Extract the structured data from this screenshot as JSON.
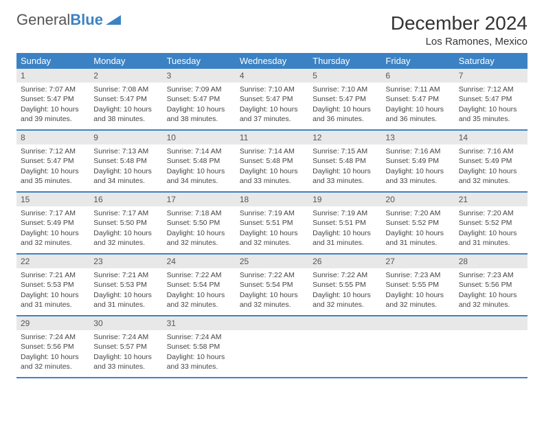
{
  "brand": {
    "word1": "General",
    "word2": "Blue"
  },
  "title": "December 2024",
  "location": "Los Ramones, Mexico",
  "colors": {
    "header_bg": "#3b82c4",
    "header_text": "#ffffff",
    "daynum_bg": "#e8e8e8",
    "text": "#444444",
    "rule": "#3b82c4"
  },
  "weekdays": [
    "Sunday",
    "Monday",
    "Tuesday",
    "Wednesday",
    "Thursday",
    "Friday",
    "Saturday"
  ],
  "days": [
    {
      "n": "1",
      "sr": "7:07 AM",
      "ss": "5:47 PM",
      "dl": "10 hours and 39 minutes."
    },
    {
      "n": "2",
      "sr": "7:08 AM",
      "ss": "5:47 PM",
      "dl": "10 hours and 38 minutes."
    },
    {
      "n": "3",
      "sr": "7:09 AM",
      "ss": "5:47 PM",
      "dl": "10 hours and 38 minutes."
    },
    {
      "n": "4",
      "sr": "7:10 AM",
      "ss": "5:47 PM",
      "dl": "10 hours and 37 minutes."
    },
    {
      "n": "5",
      "sr": "7:10 AM",
      "ss": "5:47 PM",
      "dl": "10 hours and 36 minutes."
    },
    {
      "n": "6",
      "sr": "7:11 AM",
      "ss": "5:47 PM",
      "dl": "10 hours and 36 minutes."
    },
    {
      "n": "7",
      "sr": "7:12 AM",
      "ss": "5:47 PM",
      "dl": "10 hours and 35 minutes."
    },
    {
      "n": "8",
      "sr": "7:12 AM",
      "ss": "5:47 PM",
      "dl": "10 hours and 35 minutes."
    },
    {
      "n": "9",
      "sr": "7:13 AM",
      "ss": "5:48 PM",
      "dl": "10 hours and 34 minutes."
    },
    {
      "n": "10",
      "sr": "7:14 AM",
      "ss": "5:48 PM",
      "dl": "10 hours and 34 minutes."
    },
    {
      "n": "11",
      "sr": "7:14 AM",
      "ss": "5:48 PM",
      "dl": "10 hours and 33 minutes."
    },
    {
      "n": "12",
      "sr": "7:15 AM",
      "ss": "5:48 PM",
      "dl": "10 hours and 33 minutes."
    },
    {
      "n": "13",
      "sr": "7:16 AM",
      "ss": "5:49 PM",
      "dl": "10 hours and 33 minutes."
    },
    {
      "n": "14",
      "sr": "7:16 AM",
      "ss": "5:49 PM",
      "dl": "10 hours and 32 minutes."
    },
    {
      "n": "15",
      "sr": "7:17 AM",
      "ss": "5:49 PM",
      "dl": "10 hours and 32 minutes."
    },
    {
      "n": "16",
      "sr": "7:17 AM",
      "ss": "5:50 PM",
      "dl": "10 hours and 32 minutes."
    },
    {
      "n": "17",
      "sr": "7:18 AM",
      "ss": "5:50 PM",
      "dl": "10 hours and 32 minutes."
    },
    {
      "n": "18",
      "sr": "7:19 AM",
      "ss": "5:51 PM",
      "dl": "10 hours and 32 minutes."
    },
    {
      "n": "19",
      "sr": "7:19 AM",
      "ss": "5:51 PM",
      "dl": "10 hours and 31 minutes."
    },
    {
      "n": "20",
      "sr": "7:20 AM",
      "ss": "5:52 PM",
      "dl": "10 hours and 31 minutes."
    },
    {
      "n": "21",
      "sr": "7:20 AM",
      "ss": "5:52 PM",
      "dl": "10 hours and 31 minutes."
    },
    {
      "n": "22",
      "sr": "7:21 AM",
      "ss": "5:53 PM",
      "dl": "10 hours and 31 minutes."
    },
    {
      "n": "23",
      "sr": "7:21 AM",
      "ss": "5:53 PM",
      "dl": "10 hours and 31 minutes."
    },
    {
      "n": "24",
      "sr": "7:22 AM",
      "ss": "5:54 PM",
      "dl": "10 hours and 32 minutes."
    },
    {
      "n": "25",
      "sr": "7:22 AM",
      "ss": "5:54 PM",
      "dl": "10 hours and 32 minutes."
    },
    {
      "n": "26",
      "sr": "7:22 AM",
      "ss": "5:55 PM",
      "dl": "10 hours and 32 minutes."
    },
    {
      "n": "27",
      "sr": "7:23 AM",
      "ss": "5:55 PM",
      "dl": "10 hours and 32 minutes."
    },
    {
      "n": "28",
      "sr": "7:23 AM",
      "ss": "5:56 PM",
      "dl": "10 hours and 32 minutes."
    },
    {
      "n": "29",
      "sr": "7:24 AM",
      "ss": "5:56 PM",
      "dl": "10 hours and 32 minutes."
    },
    {
      "n": "30",
      "sr": "7:24 AM",
      "ss": "5:57 PM",
      "dl": "10 hours and 33 minutes."
    },
    {
      "n": "31",
      "sr": "7:24 AM",
      "ss": "5:58 PM",
      "dl": "10 hours and 33 minutes."
    }
  ],
  "labels": {
    "sunrise": "Sunrise:",
    "sunset": "Sunset:",
    "daylight": "Daylight:"
  }
}
